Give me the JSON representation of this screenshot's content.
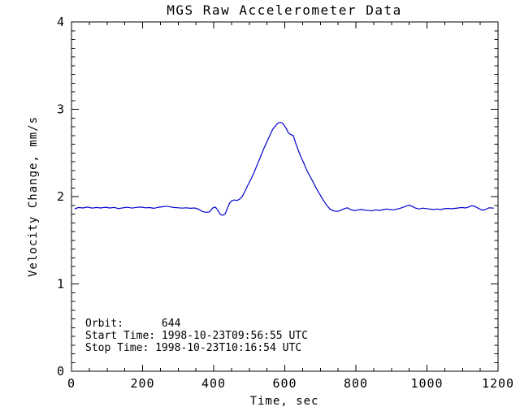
{
  "title": "MGS Raw Accelerometer Data",
  "colors": {
    "background": "#ffffff",
    "axis": "#000000",
    "line": "#0000cd"
  },
  "annotations_block": {
    "line1": "Orbit:      644",
    "line2": "Start Time: 1998-10-23T09:56:55 UTC",
    "line3": "Stop Time: 1998-10-23T10:16:54 UTC",
    "orbit_label": "Orbit:",
    "orbit_value": "644",
    "start_time_label": "Start Time:",
    "start_time_value": "1998-10-23T09:56:55 UTC",
    "stop_time_label": "Stop Time:",
    "stop_time_value": "1998-10-23T10:16:54 UTC"
  },
  "chart_data": {
    "type": "line",
    "title": "MGS Raw Accelerometer Data",
    "xlabel": "Time, sec",
    "ylabel": "Velocity Change, mm/s",
    "xlim": [
      0,
      1200
    ],
    "ylim": [
      0,
      4
    ],
    "x_major_ticks": [
      0,
      200,
      400,
      600,
      800,
      1000,
      1200
    ],
    "x_minor_interval": 50,
    "y_major_ticks": [
      0,
      1,
      2,
      3,
      4
    ],
    "y_minor_interval": 0.1,
    "grid": false,
    "legend": null,
    "box_axes": true,
    "line_color": "#0000cd",
    "annotations": [
      "Orbit:      644",
      "Start Time: 1998-10-23T09:56:55 UTC",
      "Stop Time: 1998-10-23T10:16:54 UTC"
    ],
    "series": [
      {
        "name": "velocity-change",
        "color": "#0000cd",
        "points": [
          [
            9,
            1.86
          ],
          [
            20,
            1.875
          ],
          [
            32,
            1.87
          ],
          [
            45,
            1.88
          ],
          [
            58,
            1.868
          ],
          [
            70,
            1.875
          ],
          [
            82,
            1.87
          ],
          [
            95,
            1.878
          ],
          [
            108,
            1.87
          ],
          [
            120,
            1.876
          ],
          [
            132,
            1.863
          ],
          [
            145,
            1.872
          ],
          [
            158,
            1.878
          ],
          [
            170,
            1.868
          ],
          [
            182,
            1.876
          ],
          [
            195,
            1.88
          ],
          [
            208,
            1.872
          ],
          [
            220,
            1.874
          ],
          [
            232,
            1.866
          ],
          [
            245,
            1.878
          ],
          [
            258,
            1.885
          ],
          [
            268,
            1.89
          ],
          [
            278,
            1.882
          ],
          [
            288,
            1.875
          ],
          [
            300,
            1.872
          ],
          [
            312,
            1.868
          ],
          [
            322,
            1.872
          ],
          [
            335,
            1.866
          ],
          [
            347,
            1.87
          ],
          [
            358,
            1.855
          ],
          [
            368,
            1.83
          ],
          [
            378,
            1.82
          ],
          [
            388,
            1.825
          ],
          [
            398,
            1.872
          ],
          [
            405,
            1.88
          ],
          [
            412,
            1.84
          ],
          [
            418,
            1.8
          ],
          [
            425,
            1.785
          ],
          [
            432,
            1.8
          ],
          [
            438,
            1.86
          ],
          [
            444,
            1.92
          ],
          [
            450,
            1.95
          ],
          [
            458,
            1.962
          ],
          [
            466,
            1.955
          ],
          [
            474,
            1.975
          ],
          [
            480,
            2.0
          ],
          [
            488,
            2.06
          ],
          [
            496,
            2.13
          ],
          [
            505,
            2.2
          ],
          [
            514,
            2.28
          ],
          [
            523,
            2.37
          ],
          [
            532,
            2.46
          ],
          [
            541,
            2.55
          ],
          [
            550,
            2.63
          ],
          [
            558,
            2.7
          ],
          [
            566,
            2.77
          ],
          [
            574,
            2.81
          ],
          [
            580,
            2.84
          ],
          [
            586,
            2.85
          ],
          [
            592,
            2.845
          ],
          [
            598,
            2.82
          ],
          [
            604,
            2.78
          ],
          [
            610,
            2.73
          ],
          [
            617,
            2.71
          ],
          [
            624,
            2.7
          ],
          [
            630,
            2.62
          ],
          [
            638,
            2.53
          ],
          [
            646,
            2.45
          ],
          [
            654,
            2.38
          ],
          [
            662,
            2.3
          ],
          [
            670,
            2.24
          ],
          [
            678,
            2.18
          ],
          [
            688,
            2.1
          ],
          [
            698,
            2.03
          ],
          [
            708,
            1.96
          ],
          [
            718,
            1.9
          ],
          [
            728,
            1.855
          ],
          [
            738,
            1.835
          ],
          [
            748,
            1.83
          ],
          [
            758,
            1.845
          ],
          [
            768,
            1.862
          ],
          [
            776,
            1.872
          ],
          [
            786,
            1.85
          ],
          [
            796,
            1.84
          ],
          [
            806,
            1.848
          ],
          [
            816,
            1.852
          ],
          [
            826,
            1.845
          ],
          [
            836,
            1.84
          ],
          [
            846,
            1.838
          ],
          [
            856,
            1.848
          ],
          [
            866,
            1.842
          ],
          [
            876,
            1.85
          ],
          [
            886,
            1.858
          ],
          [
            896,
            1.852
          ],
          [
            906,
            1.848
          ],
          [
            916,
            1.858
          ],
          [
            926,
            1.868
          ],
          [
            936,
            1.882
          ],
          [
            944,
            1.895
          ],
          [
            952,
            1.9
          ],
          [
            960,
            1.885
          ],
          [
            968,
            1.868
          ],
          [
            978,
            1.858
          ],
          [
            988,
            1.868
          ],
          [
            998,
            1.862
          ],
          [
            1008,
            1.858
          ],
          [
            1018,
            1.852
          ],
          [
            1028,
            1.858
          ],
          [
            1038,
            1.852
          ],
          [
            1048,
            1.86
          ],
          [
            1058,
            1.865
          ],
          [
            1068,
            1.86
          ],
          [
            1078,
            1.865
          ],
          [
            1088,
            1.87
          ],
          [
            1098,
            1.875
          ],
          [
            1108,
            1.87
          ],
          [
            1118,
            1.882
          ],
          [
            1126,
            1.895
          ],
          [
            1134,
            1.888
          ],
          [
            1142,
            1.872
          ],
          [
            1150,
            1.855
          ],
          [
            1158,
            1.845
          ],
          [
            1166,
            1.855
          ],
          [
            1174,
            1.872
          ],
          [
            1182,
            1.87
          ],
          [
            1188,
            1.868
          ]
        ]
      }
    ]
  }
}
